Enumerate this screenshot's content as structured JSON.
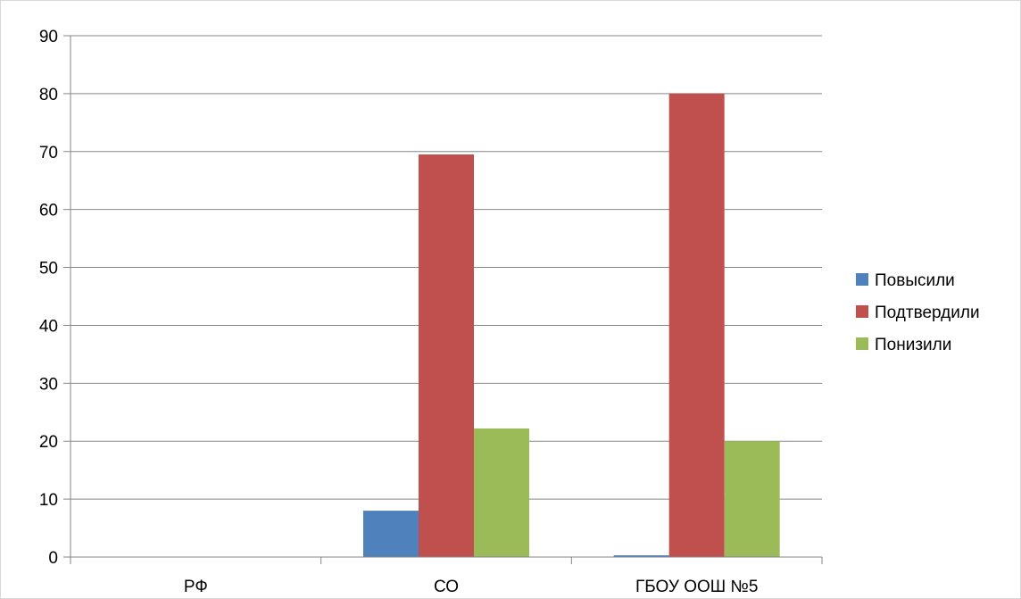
{
  "chart_data": {
    "type": "bar",
    "categories": [
      "РФ",
      "СО",
      "ГБОУ ООШ №5"
    ],
    "series": [
      {
        "name": "Повысили",
        "color": "#4f81bd",
        "values": [
          0,
          8,
          0.3
        ]
      },
      {
        "name": "Подтвердили",
        "color": "#c0504d",
        "values": [
          0,
          69.5,
          80
        ]
      },
      {
        "name": "Понизили",
        "color": "#9bbb59",
        "values": [
          0,
          22.2,
          20
        ]
      }
    ],
    "y_ticks": [
      "0",
      "10",
      "20",
      "30",
      "40",
      "50",
      "60",
      "70",
      "80",
      "90"
    ],
    "ylim": [
      0,
      90
    ],
    "grid": true,
    "legend_position": "right"
  }
}
